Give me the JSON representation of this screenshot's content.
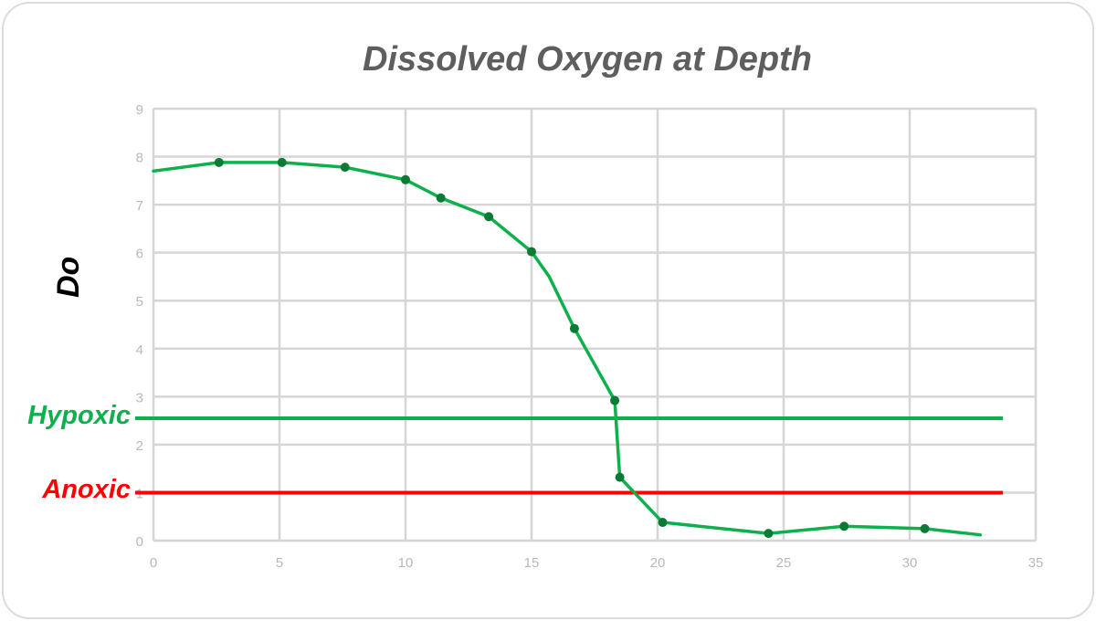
{
  "chart_data": {
    "type": "line",
    "title": "Dissolved Oxygen at Depth",
    "xlabel": "",
    "ylabel": "Do",
    "xlim": [
      0,
      35
    ],
    "ylim": [
      0,
      9
    ],
    "x_ticks": [
      "0",
      "5",
      "10",
      "15",
      "20",
      "25",
      "30",
      "35"
    ],
    "y_ticks": [
      "0",
      "1",
      "2",
      "3",
      "4",
      "5",
      "6",
      "7",
      "8",
      "9"
    ],
    "grid": true,
    "legend": "none",
    "series": [
      {
        "name": "Dissolved Oxygen",
        "color": "#0eb04d",
        "marker_color": "#0a7a35",
        "points": [
          {
            "x": 0,
            "y": 7.7,
            "marker": false
          },
          {
            "x": 2.6,
            "y": 7.88,
            "marker": true
          },
          {
            "x": 5.1,
            "y": 7.88,
            "marker": true
          },
          {
            "x": 7.6,
            "y": 7.78,
            "marker": true
          },
          {
            "x": 10.0,
            "y": 7.52,
            "marker": true
          },
          {
            "x": 11.4,
            "y": 7.14,
            "marker": true
          },
          {
            "x": 13.3,
            "y": 6.75,
            "marker": true
          },
          {
            "x": 15.0,
            "y": 6.02,
            "marker": true
          },
          {
            "x": 15.7,
            "y": 5.5,
            "marker": false
          },
          {
            "x": 16.7,
            "y": 4.42,
            "marker": true
          },
          {
            "x": 18.3,
            "y": 2.92,
            "marker": true
          },
          {
            "x": 18.5,
            "y": 1.32,
            "marker": true
          },
          {
            "x": 20.2,
            "y": 0.38,
            "marker": true
          },
          {
            "x": 24.4,
            "y": 0.15,
            "marker": true
          },
          {
            "x": 27.4,
            "y": 0.3,
            "marker": true
          },
          {
            "x": 30.6,
            "y": 0.25,
            "marker": true
          },
          {
            "x": 32.8,
            "y": 0.12,
            "marker": false
          }
        ]
      }
    ],
    "reference_lines": [
      {
        "label": "Hypoxic",
        "y": 2.55,
        "x_start": -0.5,
        "x_end": 33.7,
        "color": "#0eb04d"
      },
      {
        "label": "Anoxic",
        "y": 1.0,
        "x_start": -0.5,
        "x_end": 33.7,
        "color": "#ff0000"
      }
    ]
  },
  "colors": {
    "title": "#5e5e5e",
    "grid": "#d6d6d6",
    "tick": "#b8b8b8",
    "hypoxic": "#0eb04d",
    "anoxic": "#ff0000"
  }
}
